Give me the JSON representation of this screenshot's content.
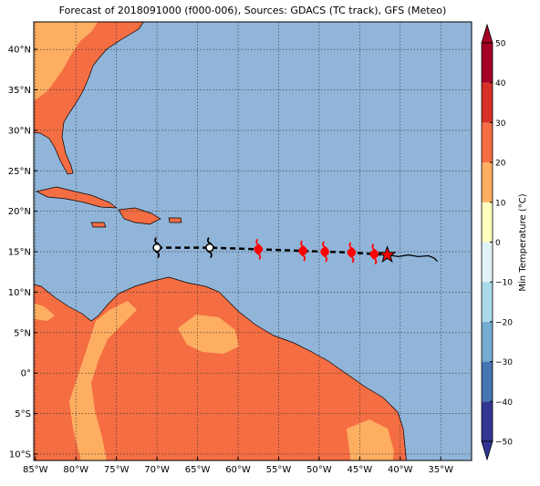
{
  "title": "Forecast of 2018091000 (f000-006), Sources: GDACS (TC track), GFS (Meteo)",
  "map": {
    "lonlim": [
      -85.2,
      -31.2
    ],
    "latlim": [
      -10.8,
      43.4
    ],
    "lonticks": [
      {
        "value": -85,
        "label": "85°W"
      },
      {
        "value": -80,
        "label": "80°W"
      },
      {
        "value": -75,
        "label": "75°W"
      },
      {
        "value": -70,
        "label": "70°W"
      },
      {
        "value": -65,
        "label": "65°W"
      },
      {
        "value": -60,
        "label": "60°W"
      },
      {
        "value": -55,
        "label": "55°W"
      },
      {
        "value": -50,
        "label": "50°W"
      },
      {
        "value": -45,
        "label": "45°W"
      },
      {
        "value": -40,
        "label": "40°W"
      },
      {
        "value": -35,
        "label": "35°W"
      }
    ],
    "latticks": [
      {
        "value": 40,
        "label": "40°N"
      },
      {
        "value": 35,
        "label": "35°N"
      },
      {
        "value": 30,
        "label": "30°N"
      },
      {
        "value": 25,
        "label": "25°N"
      },
      {
        "value": 20,
        "label": "20°N"
      },
      {
        "value": 15,
        "label": "15°N"
      },
      {
        "value": 10,
        "label": "10°N"
      },
      {
        "value": 5,
        "label": "5°N"
      },
      {
        "value": 0,
        "label": "0°"
      },
      {
        "value": -5,
        "label": "5°S"
      },
      {
        "value": -10,
        "label": "10°S"
      }
    ],
    "grid": true,
    "ocean_color": "#91b5d9"
  },
  "colorbar": {
    "label": "Min Temperature (°C)",
    "lim": [
      -50,
      50
    ],
    "ticks": [
      50,
      40,
      30,
      20,
      10,
      0,
      {
        "value": -10,
        "label": "−10"
      },
      {
        "value": -20,
        "label": "−20"
      },
      {
        "value": -30,
        "label": "−30"
      },
      {
        "value": -40,
        "label": "−40"
      },
      {
        "value": -50,
        "label": "−50"
      }
    ],
    "levels": [
      -50,
      -40,
      -30,
      -20,
      -10,
      0,
      10,
      20,
      30,
      40,
      50
    ],
    "colors": [
      "#313695",
      "#4575b4",
      "#74add1",
      "#abd9e9",
      "#e0f3f8",
      "#ffffbf",
      "#fdae61",
      "#f46d43",
      "#d73027",
      "#a50026"
    ]
  },
  "track": {
    "forecast_points": [
      {
        "lon": -70,
        "lat": 15.5,
        "color": "#000000"
      },
      {
        "lon": -63.5,
        "lat": 15.5,
        "color": "#000000"
      },
      {
        "lon": -57.5,
        "lat": 15.3,
        "color": "#ff0000"
      },
      {
        "lon": -52,
        "lat": 15.1,
        "color": "#ff0000"
      },
      {
        "lon": -49.3,
        "lat": 15.0,
        "color": "#ff0000"
      },
      {
        "lon": -46,
        "lat": 14.9,
        "color": "#ff0000"
      },
      {
        "lon": -43.2,
        "lat": 14.7,
        "color": "#ff0000"
      }
    ],
    "position": {
      "lon": -41.6,
      "lat": 14.6
    },
    "past": {
      "lon": [
        -41.6,
        -40.2,
        -39,
        -37.8,
        -36.5,
        -35.8,
        -35.4
      ],
      "lat": [
        14.6,
        14.4,
        14.6,
        14.4,
        14.5,
        14.2,
        13.8
      ]
    }
  }
}
